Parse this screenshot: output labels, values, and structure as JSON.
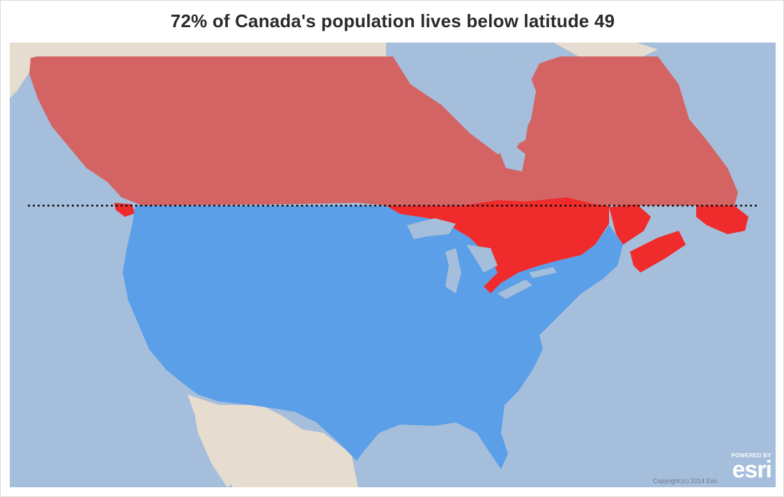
{
  "title": "72% of Canada's population lives below latitude 49",
  "attribution": {
    "copyright": "Copyright:(c) 2014 Esri",
    "powered_by": "POWERED BY",
    "logo_word": "esri"
  },
  "map": {
    "reference_line_latitude": 49,
    "regions": [
      {
        "name": "Canada north of latitude 49",
        "color": "#d46464"
      },
      {
        "name": "Canada south of latitude 49",
        "color": "#ef2b2b"
      },
      {
        "name": "United States",
        "color": "#5a9fe8"
      }
    ],
    "water_color": "#a5bedb",
    "land_color": "#e6dcd0"
  }
}
